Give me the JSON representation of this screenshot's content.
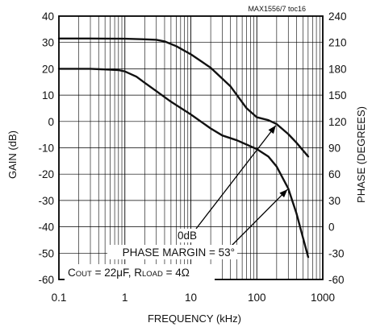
{
  "chart_data": {
    "type": "line",
    "figure_id": "MAX1556/7 toc16",
    "xlabel": "FREQUENCY (kHz)",
    "ylabel_left": "GAIN (dB)",
    "ylabel_right": "PHASE (DEGREES)",
    "xscale": "log",
    "xlim": [
      0.1,
      1000
    ],
    "ylim_left": [
      -60,
      40
    ],
    "ylim_right": [
      -60,
      240
    ],
    "grid": true,
    "x_ticks": [
      "0.1",
      "1",
      "10",
      "100",
      "1000"
    ],
    "y_ticks_left": [
      "40",
      "30",
      "20",
      "10",
      "0",
      "-10",
      "-20",
      "-30",
      "-40",
      "-50",
      "-60"
    ],
    "y_ticks_right": [
      "240",
      "210",
      "180",
      "150",
      "120",
      "90",
      "60",
      "30",
      "0",
      "-30",
      "-60"
    ],
    "series": [
      {
        "axis": "left",
        "x": [
          0.1,
          0.3,
          1,
          2,
          3,
          4,
          6,
          10,
          20,
          40,
          70,
          100,
          150,
          200,
          300,
          400,
          600
        ],
        "values": [
          31.5,
          31.5,
          31.4,
          31.2,
          31.0,
          30.4,
          28.6,
          25.5,
          20.4,
          13.3,
          5.0,
          1.6,
          0.5,
          -1.0,
          -4.8,
          -8.1,
          -13.3
        ]
      },
      {
        "axis": "right",
        "x": [
          0.1,
          0.3,
          0.8,
          1,
          1.5,
          2,
          3,
          5,
          10,
          20,
          30,
          50,
          100,
          150,
          200,
          300,
          400,
          600
        ],
        "values": [
          180,
          180,
          178.5,
          177,
          171,
          164,
          154.5,
          142.5,
          128,
          112,
          104,
          98.5,
          88.5,
          80,
          68.5,
          43.5,
          15,
          -34.5
        ]
      }
    ],
    "annotations": [
      {
        "text": "0dB",
        "arrow_to": {
          "x": 200,
          "y": -1.2
        }
      },
      {
        "prefix": "PHASE MARGIN = ",
        "value": "53",
        "unit": "°",
        "arrow_to": {
          "x": 300,
          "y": 43.5,
          "axis": "right"
        }
      }
    ],
    "condition_label": {
      "c_main": "C",
      "c_sub": "OUT",
      "c_val": " = 22μF, ",
      "r_main": "R",
      "r_sub": "LOAD",
      "r_val": " = 4Ω"
    }
  }
}
